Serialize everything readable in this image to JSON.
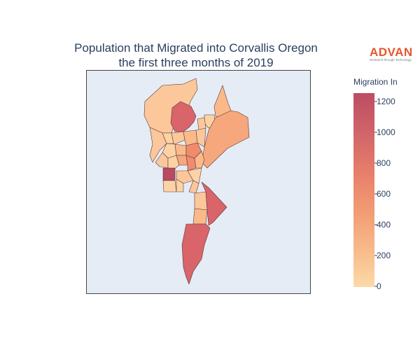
{
  "title_line1": "Population that Migrated into Corvallis Oregon",
  "title_line2": "the first three months of 2019",
  "logo": {
    "name": "ADVAN",
    "tagline": "Research through Technology",
    "color": "#e8542c"
  },
  "colorbar": {
    "title": "Migration In",
    "ticks": [
      "0",
      "200",
      "400",
      "600",
      "800",
      "1000",
      "1200"
    ],
    "range": [
      0,
      1260
    ],
    "colors": [
      "#fcd9a8",
      "#f7b989",
      "#f29a73",
      "#e67d6b",
      "#d06469",
      "#bd4c62"
    ]
  },
  "map_background": "#e5ecf6",
  "chart_data": {
    "type": "choropleth",
    "title": "Population that Migrated into Corvallis Oregon the first three months of 2019",
    "colorbar_label": "Migration In",
    "zmin": 0,
    "zmax": 1260
  }
}
